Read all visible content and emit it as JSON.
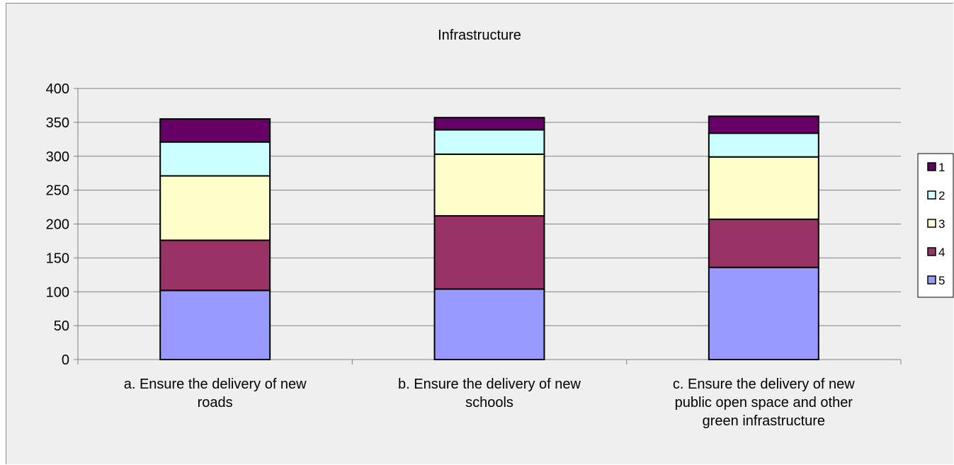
{
  "chart_data": {
    "type": "bar",
    "stacked": true,
    "title": "Infrastructure",
    "xlabel": "",
    "ylabel": "",
    "ylim": [
      0,
      400
    ],
    "yticks": [
      0,
      50,
      100,
      150,
      200,
      250,
      300,
      350,
      400
    ],
    "grid": true,
    "legend_position": "right",
    "categories": [
      [
        "a. Ensure the delivery of new",
        "roads"
      ],
      [
        "b. Ensure the delivery of new",
        "schools"
      ],
      [
        "c. Ensure the delivery of new",
        "public open space and other",
        "green infrastructure"
      ]
    ],
    "series": [
      {
        "name": "5",
        "color": "#9999ff",
        "values": [
          102,
          104,
          136
        ]
      },
      {
        "name": "4",
        "color": "#993366",
        "values": [
          74,
          108,
          71
        ]
      },
      {
        "name": "3",
        "color": "#ffffcc",
        "values": [
          95,
          91,
          92
        ]
      },
      {
        "name": "2",
        "color": "#ccffff",
        "values": [
          50,
          36,
          35
        ]
      },
      {
        "name": "1",
        "color": "#660066",
        "values": [
          34,
          18,
          25
        ]
      }
    ],
    "legend_order": [
      "1",
      "2",
      "3",
      "4",
      "5"
    ]
  }
}
